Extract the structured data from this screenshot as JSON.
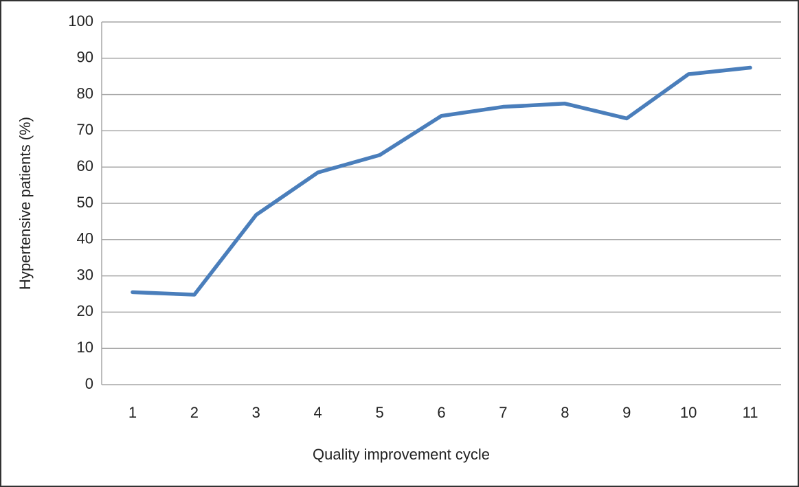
{
  "chart_data": {
    "type": "line",
    "x_label": "Quality improvement cycle",
    "y_label": "Hypertensive patients (%)",
    "categories": [
      "1",
      "2",
      "3",
      "4",
      "5",
      "6",
      "7",
      "8",
      "9",
      "10",
      "11"
    ],
    "series": [
      {
        "color": "#4a7ebb",
        "values": [
          25.5,
          24.8,
          46.8,
          58.5,
          63.3,
          74.1,
          76.6,
          77.5,
          73.4,
          85.6,
          87.4
        ]
      }
    ],
    "ylim": [
      0,
      100
    ],
    "yticks": [
      0,
      10,
      20,
      30,
      40,
      50,
      60,
      70,
      80,
      90,
      100
    ],
    "grid": true
  }
}
